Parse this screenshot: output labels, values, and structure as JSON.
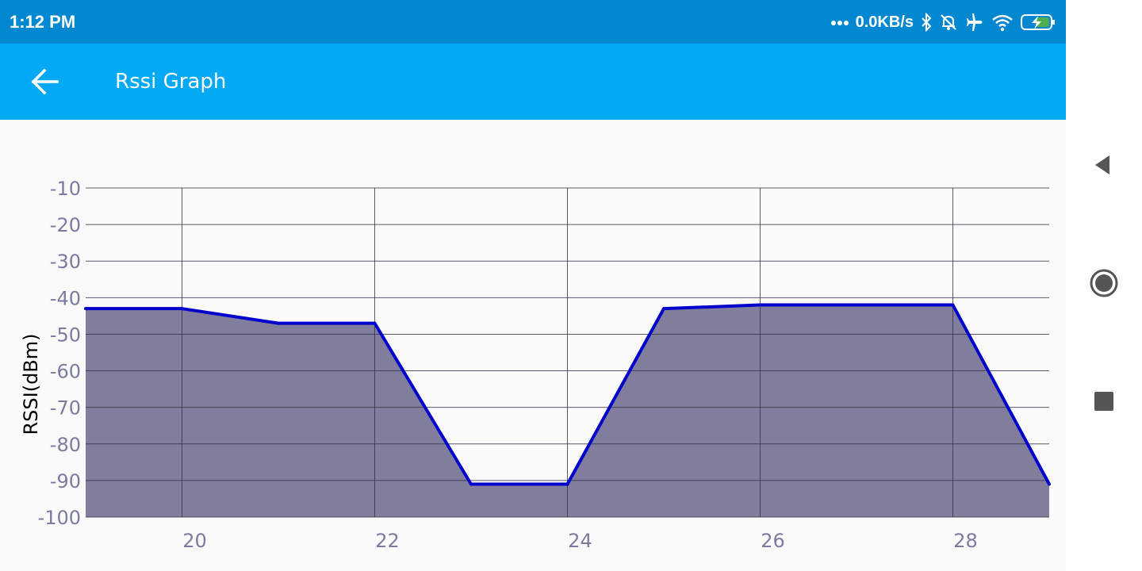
{
  "status_bar": {
    "time": "1:12 PM",
    "net_speed": "0.0KB/s",
    "icons": [
      "more-dots-icon",
      "bluetooth-icon",
      "bell-off-icon",
      "airplane-icon",
      "wifi-icon",
      "battery-charging-icon"
    ]
  },
  "app_bar": {
    "back_icon": "arrow-left-icon",
    "title": "Rssi Graph"
  },
  "nav_bar": {
    "icons": [
      "nav-back-triangle-icon",
      "nav-home-circle-icon",
      "nav-recents-square-icon"
    ]
  },
  "colors": {
    "status_bar": "#0288d1",
    "app_bar": "#03a9f4",
    "line": "#0000cc",
    "fill": "#807e9c",
    "tick_label": "#7b7ba0"
  },
  "chart_data": {
    "type": "area",
    "title": "",
    "xlabel": "",
    "ylabel": "RSSI(dBm)",
    "x": [
      19,
      20,
      21,
      22,
      23,
      24,
      25,
      26,
      27,
      28,
      29
    ],
    "series": [
      {
        "values": [
          -43,
          -43,
          -47,
          -47,
          -91,
          -91,
          -43,
          -42,
          -42,
          -42,
          -91
        ]
      }
    ],
    "xlim": [
      19,
      29
    ],
    "ylim": [
      -100,
      -10
    ],
    "x_ticks": [
      20,
      22,
      24,
      26,
      28
    ],
    "x_tick_labels": [
      "20",
      "22",
      "24",
      "26",
      "28"
    ],
    "y_ticks": [
      -10,
      -20,
      -30,
      -40,
      -50,
      -60,
      -70,
      -80,
      -90,
      -100
    ],
    "y_tick_labels": [
      "-10",
      "-20",
      "-30",
      "-40",
      "-50",
      "-60",
      "-70",
      "-80",
      "-90",
      "-100"
    ],
    "grid": true,
    "legend": "none"
  }
}
